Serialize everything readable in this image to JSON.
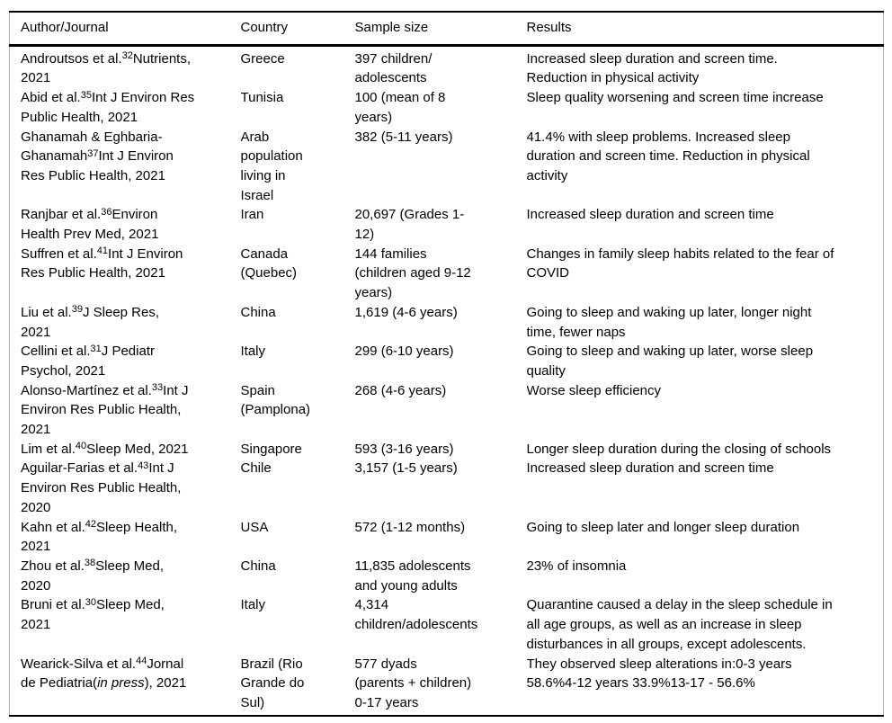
{
  "colors": {
    "background": "#ffffff",
    "text": "#000000",
    "rule": "#000000",
    "side_border": "#b5b5b5"
  },
  "table": {
    "columns": [
      {
        "key": "author",
        "label": "Author/Journal"
      },
      {
        "key": "country",
        "label": "Country"
      },
      {
        "key": "sample",
        "label": "Sample size"
      },
      {
        "key": "results",
        "label": "Results"
      }
    ],
    "rows": [
      {
        "author": [
          {
            "t": "Androutsos et al."
          },
          {
            "t": "32",
            "sup": true
          },
          {
            "t": "Nutrients,\n2021"
          }
        ],
        "country": "Greece",
        "sample": "397 children/\nadolescents",
        "results": "Increased sleep duration and screen time.\nReduction in physical activity"
      },
      {
        "author": [
          {
            "t": "Abid et al."
          },
          {
            "t": "35",
            "sup": true
          },
          {
            "t": "Int J Environ Res\nPublic Health, 2021"
          }
        ],
        "country": "Tunisia",
        "sample": "100 (mean of 8\nyears)",
        "results": "Sleep quality worsening and screen time increase"
      },
      {
        "author": [
          {
            "t": "Ghanamah & Eghbaria-\nGhanamah"
          },
          {
            "t": "37",
            "sup": true
          },
          {
            "t": "Int J Environ\nRes Public Health, 2021"
          }
        ],
        "country": "Arab\npopulation\nliving in\nIsrael",
        "sample": "382 (5-11 years)",
        "results": "41.4% with sleep problems. Increased sleep\nduration and screen time. Reduction in physical\nactivity"
      },
      {
        "author": [
          {
            "t": "Ranjbar et al."
          },
          {
            "t": "36",
            "sup": true
          },
          {
            "t": "Environ\nHealth Prev Med, 2021"
          }
        ],
        "country": "Iran",
        "sample": "20,697 (Grades 1-\n12)",
        "results": "Increased sleep duration and screen time"
      },
      {
        "author": [
          {
            "t": "Suffren et al."
          },
          {
            "t": "41",
            "sup": true
          },
          {
            "t": "Int J Environ\nRes Public Health, 2021"
          }
        ],
        "country": "Canada\n(Quebec)",
        "sample": "144 families\n(children aged 9-12\nyears)",
        "results": "Changes in family sleep habits related to the fear of\nCOVID"
      },
      {
        "author": [
          {
            "t": "Liu et al."
          },
          {
            "t": "39",
            "sup": true
          },
          {
            "t": "J Sleep Res,\n2021"
          }
        ],
        "country": "China",
        "sample": "1,619 (4-6 years)",
        "results": "Going to sleep and waking up later, longer night\ntime, fewer naps"
      },
      {
        "author": [
          {
            "t": "Cellini et al."
          },
          {
            "t": "31",
            "sup": true
          },
          {
            "t": "J Pediatr\nPsychol, 2021"
          }
        ],
        "country": "Italy",
        "sample": "299 (6-10 years)",
        "results": "Going to sleep and waking up later, worse sleep\nquality"
      },
      {
        "author": [
          {
            "t": "Alonso-Martínez et al."
          },
          {
            "t": "33",
            "sup": true
          },
          {
            "t": "Int J\nEnviron Res Public Health,\n2021"
          }
        ],
        "country": "Spain\n(Pamplona)",
        "sample": "268 (4-6 years)",
        "results": "Worse sleep efficiency"
      },
      {
        "author": [
          {
            "t": "Lim et al."
          },
          {
            "t": "40",
            "sup": true
          },
          {
            "t": "Sleep Med, 2021"
          }
        ],
        "country": "Singapore",
        "sample": "593 (3-16 years)",
        "results": "Longer sleep duration during the closing of schools"
      },
      {
        "author": [
          {
            "t": "Aguilar-Farias et al."
          },
          {
            "t": "43",
            "sup": true
          },
          {
            "t": "Int J\nEnviron Res Public Health,\n2020"
          }
        ],
        "country": "Chile",
        "sample": "3,157 (1-5 years)",
        "results": "Increased sleep duration and screen time"
      },
      {
        "author": [
          {
            "t": "Kahn et al."
          },
          {
            "t": "42",
            "sup": true
          },
          {
            "t": "Sleep Health,\n2021"
          }
        ],
        "country": "USA",
        "sample": "572 (1-12 months)",
        "results": "Going to sleep later and longer sleep duration"
      },
      {
        "author": [
          {
            "t": "Zhou et al."
          },
          {
            "t": "38",
            "sup": true
          },
          {
            "t": "Sleep Med,\n2020"
          }
        ],
        "country": "China",
        "sample": "11,835 adolescents\nand young adults",
        "results": "23% of insomnia"
      },
      {
        "author": [
          {
            "t": "Bruni et al."
          },
          {
            "t": "30",
            "sup": true
          },
          {
            "t": "Sleep Med,\n2021"
          }
        ],
        "country": "Italy",
        "sample": "4,314\nchildren/adolescents",
        "results": "Quarantine caused a delay in the sleep schedule in\nall age groups, as well as an increase in sleep\ndisturbances in all groups, except adolescents."
      },
      {
        "author": [
          {
            "t": "Wearick-Silva et al."
          },
          {
            "t": "44",
            "sup": true
          },
          {
            "t": "Jornal\nde Pediatria("
          },
          {
            "t": "in press",
            "italic": true
          },
          {
            "t": "), 2021"
          }
        ],
        "country": "Brazil (Rio\nGrande do\nSul)",
        "sample": "577 dyads\n(parents + children)\n0-17 years",
        "results": "They observed sleep alterations in:0-3 years\n58.6%4-12 years 33.9%13-17 - 56.6%"
      }
    ]
  }
}
